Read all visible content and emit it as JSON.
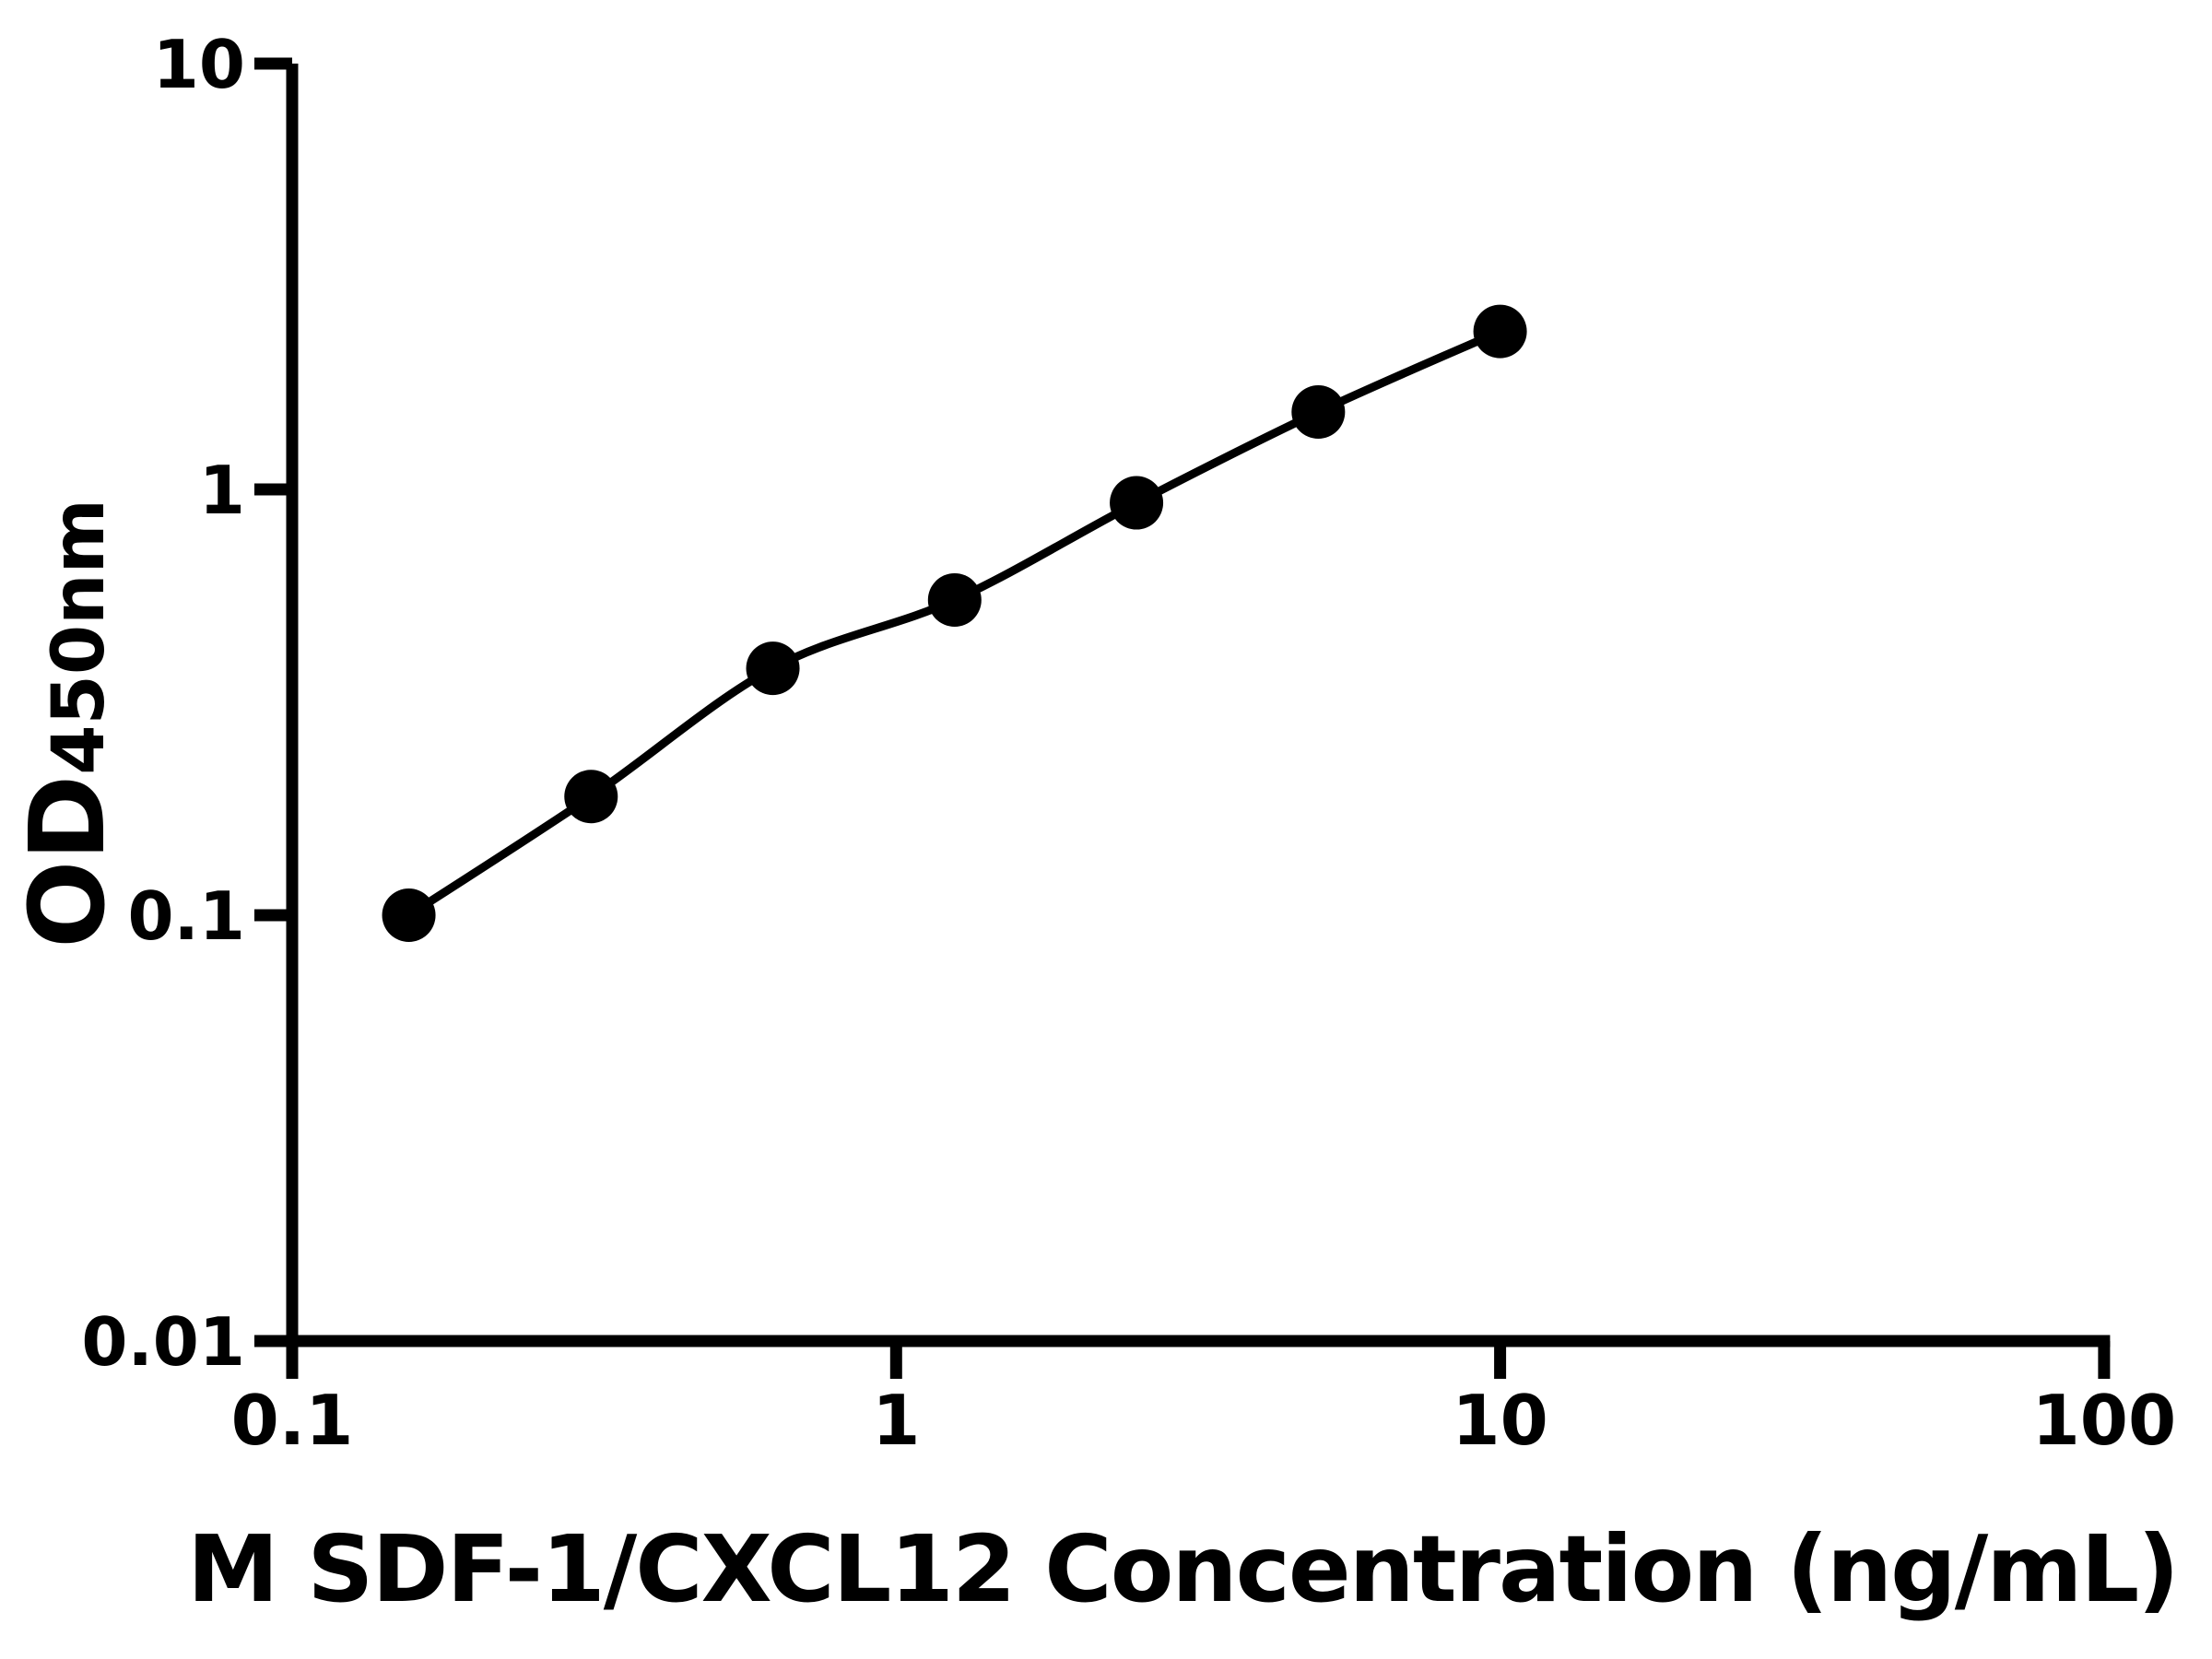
{
  "chart_data": {
    "type": "line",
    "title": "",
    "xlabel": "M SDF-1/CXCL12 Concentration (ng/mL)",
    "ylabel": "OD450nm",
    "ylabel_main": "OD",
    "ylabel_sub": "450nm",
    "xscale": "log",
    "yscale": "log",
    "xlim": [
      0.1,
      100
    ],
    "ylim": [
      0.01,
      10
    ],
    "x_tick_values": [
      0.1,
      1,
      10,
      100
    ],
    "x_tick_labels": [
      "0.1",
      "1",
      "10",
      "100"
    ],
    "y_tick_values": [
      0.01,
      0.1,
      1,
      10
    ],
    "y_tick_labels": [
      "0.01",
      "0.1",
      "1",
      "10"
    ],
    "grid": false,
    "legend": "none",
    "background_color": "#ffffff",
    "axis_color": "#000000",
    "line_color": "#000000",
    "marker_color": "#000000",
    "marker_shape": "circle",
    "series": [
      {
        "x": [
          0.156,
          0.3125,
          0.625,
          1.25,
          2.5,
          5,
          10
        ],
        "y": [
          0.1,
          0.19,
          0.38,
          0.55,
          0.93,
          1.52,
          2.35
        ]
      }
    ]
  }
}
